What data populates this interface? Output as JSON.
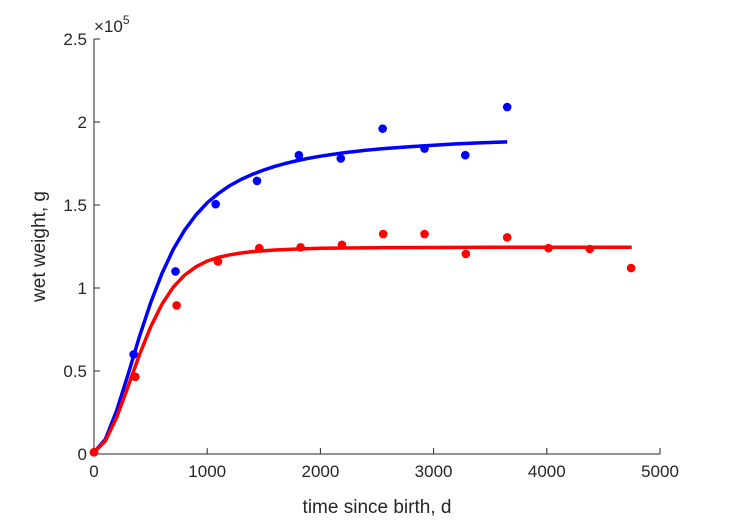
{
  "chart_data": {
    "type": "scatter",
    "xlabel": "time since birth, d",
    "ylabel": "wet weight, g",
    "xlim": [
      0,
      5000
    ],
    "ylim": [
      0,
      250000
    ],
    "x_ticks": [
      0,
      1000,
      2000,
      3000,
      4000,
      5000
    ],
    "x_tick_labels": [
      "0",
      "1000",
      "2000",
      "3000",
      "4000",
      "5000"
    ],
    "y_ticks": [
      0,
      50000,
      100000,
      150000,
      200000,
      250000
    ],
    "y_tick_labels": [
      "0",
      "0.5",
      "1",
      "1.5",
      "2",
      "2.5"
    ],
    "y_exponent_base": "×10",
    "y_exponent": "5",
    "grid": false,
    "series": [
      {
        "color": "#0000ff",
        "points": {
          "x": [
            0,
            350,
            720,
            1075,
            1440,
            1810,
            2180,
            2550,
            2920,
            3280,
            3650
          ],
          "y": [
            1000,
            60000,
            110000,
            150500,
            164500,
            180000,
            178000,
            196000,
            184000,
            180000,
            209000
          ]
        },
        "fit": {
          "x": [
            0,
            100,
            200,
            300,
            400,
            500,
            600,
            700,
            800,
            900,
            1000,
            1100,
            1200,
            1300,
            1400,
            1500,
            1600,
            1700,
            1800,
            1900,
            2000,
            2200,
            2400,
            2600,
            2800,
            3000,
            3200,
            3400,
            3650
          ],
          "y": [
            1000,
            8800,
            26000,
            47800,
            70400,
            91000,
            108700,
            123200,
            134800,
            144000,
            151300,
            157000,
            161700,
            165400,
            168500,
            171100,
            173300,
            175200,
            176800,
            178200,
            179400,
            181400,
            183000,
            184200,
            185200,
            186000,
            186800,
            187400,
            188000
          ]
        }
      },
      {
        "color": "#ff0000",
        "points": {
          "x": [
            0,
            365,
            730,
            1095,
            1460,
            1825,
            2190,
            2555,
            2920,
            3285,
            3650,
            4015,
            4380,
            4745
          ],
          "y": [
            1000,
            46500,
            89500,
            116000,
            124000,
            124500,
            126000,
            132500,
            132500,
            120500,
            130500,
            124000,
            123500,
            112000
          ]
        },
        "fit": {
          "x": [
            0,
            100,
            200,
            300,
            400,
            500,
            600,
            700,
            800,
            900,
            1000,
            1100,
            1200,
            1300,
            1400,
            1500,
            1600,
            1700,
            1800,
            2000,
            2200,
            2500,
            3000,
            3500,
            4000,
            4750
          ],
          "y": [
            1000,
            7800,
            22000,
            40500,
            59500,
            76500,
            90200,
            100500,
            107800,
            112800,
            116200,
            118500,
            120000,
            121100,
            121900,
            122500,
            122900,
            123200,
            123500,
            123900,
            124100,
            124300,
            124400,
            124500,
            124500,
            124500
          ]
        }
      }
    ]
  }
}
